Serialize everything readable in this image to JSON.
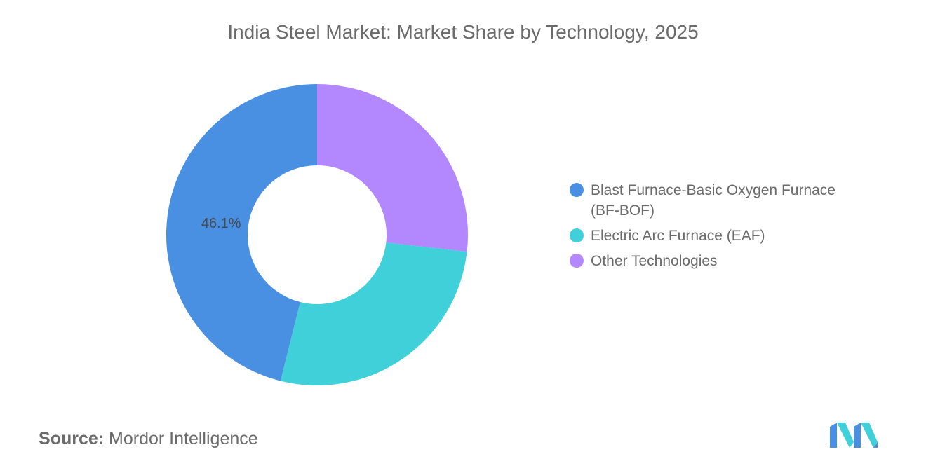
{
  "title": "India Steel Market: Market Share by Technology, 2025",
  "source": {
    "label": "Source:",
    "value": "Mordor Intelligence"
  },
  "chart_data": {
    "type": "pie",
    "variant": "donut",
    "title": "India Steel Market: Market Share by Technology, 2025",
    "categories": [
      "Blast Furnace-Basic Oxygen Furnace (BF-BOF)",
      "Electric Arc Furnace (EAF)",
      "Other Technologies"
    ],
    "values": [
      46.1,
      27.1,
      26.8
    ],
    "colors": [
      "#4a90e2",
      "#3fd0d9",
      "#b388ff"
    ],
    "data_labels": [
      "46.1%",
      "",
      ""
    ],
    "legend_position": "right"
  },
  "colors": {
    "text": "#6b6b6b",
    "logo_primary": "#4a90e2",
    "logo_secondary": "#3fd0d9"
  }
}
